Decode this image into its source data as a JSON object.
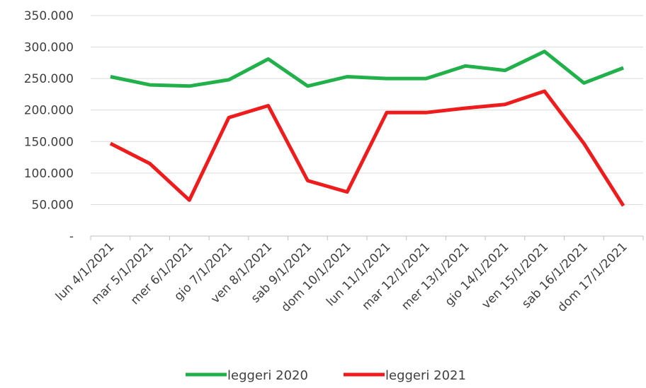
{
  "chart_data": {
    "type": "line",
    "categories": [
      "lun 4/1/2021",
      "mar 5/1/2021",
      "mer 6/1/2021",
      "gio 7/1/2021",
      "ven 8/1/2021",
      "sab 9/1/2021",
      "dom 10/1/2021",
      "lun 11/1/2021",
      "mar 12/1/2021",
      "mer 13/1/2021",
      "gio 14/1/2021",
      "ven 15/1/2021",
      "sab 16/1/2021",
      "dom 17/1/2021"
    ],
    "y_ticks": [
      {
        "value": 0,
        "label": "-"
      },
      {
        "value": 50000,
        "label": "50.000"
      },
      {
        "value": 100000,
        "label": "100.000"
      },
      {
        "value": 150000,
        "label": "150.000"
      },
      {
        "value": 200000,
        "label": "200.000"
      },
      {
        "value": 250000,
        "label": "250.000"
      },
      {
        "value": 300000,
        "label": "300.000"
      },
      {
        "value": 350000,
        "label": "350.000"
      }
    ],
    "ylim": [
      0,
      350000
    ],
    "grid": true,
    "legend_position": "bottom",
    "series": [
      {
        "name": "leggeri 2020",
        "color": "#22b04a",
        "values": [
          253000,
          240000,
          238000,
          248000,
          281000,
          238000,
          253000,
          250000,
          250000,
          270000,
          263000,
          293000,
          243000,
          267000
        ]
      },
      {
        "name": "leggeri 2021",
        "color": "#ee1c1c",
        "values": [
          147000,
          115000,
          57000,
          188000,
          207000,
          88000,
          70000,
          196000,
          196000,
          203000,
          209000,
          230000,
          147000,
          48000
        ]
      }
    ]
  }
}
